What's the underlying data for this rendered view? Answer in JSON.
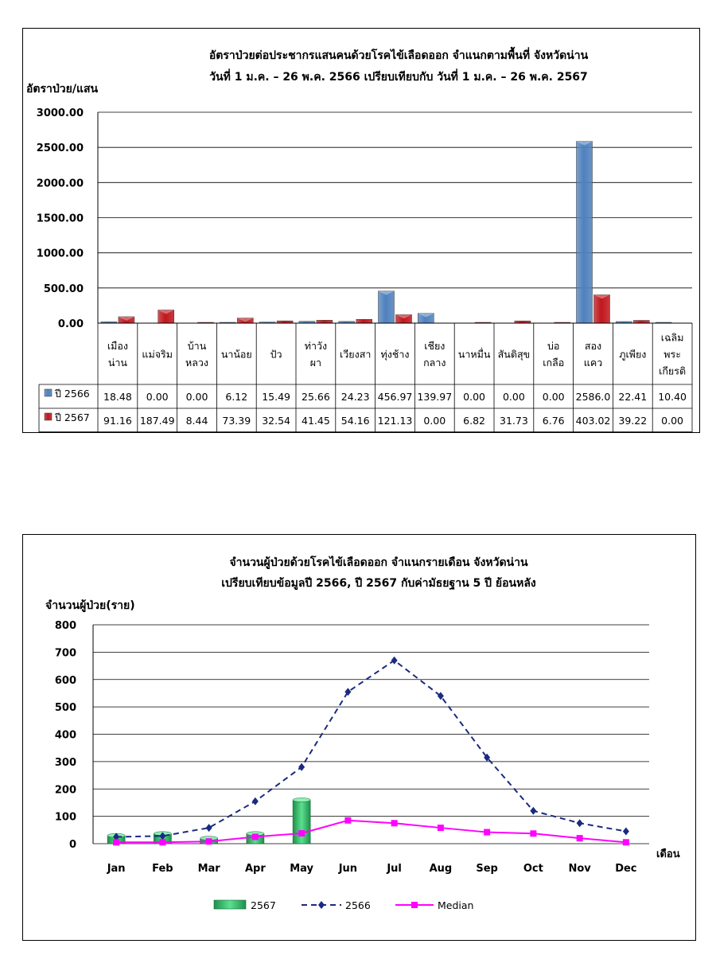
{
  "chart_data": [
    {
      "type": "bar",
      "title_lines": [
        "อัตราป่วยต่อประชากรแสนคนด้วยโรคไข้เลือดออก จำแนกตามพื้นที่ จังหวัดน่าน",
        "วันที่ 1 ม.ค. – 26 พ.ค. 2566 เปรียบเทียบกับ วันที่ 1 ม.ค. – 26 พ.ค. 2567"
      ],
      "ylabel": "อัตราป่วย/แสน",
      "ylim": [
        0,
        3000
      ],
      "yticks": [
        "0.00",
        "500.00",
        "1000.00",
        "1500.00",
        "2000.00",
        "2500.00",
        "3000.00"
      ],
      "grid": true,
      "categories": [
        [
          "เมือง",
          "น่าน"
        ],
        [
          "แม่จริม"
        ],
        [
          "บ้าน",
          "หลวง"
        ],
        [
          "นาน้อย"
        ],
        [
          "ปัว"
        ],
        [
          "ท่าวัง",
          "ผา"
        ],
        [
          "เวียงสา"
        ],
        [
          "ทุ่งช้าง"
        ],
        [
          "เชียง",
          "กลาง"
        ],
        [
          "นาหมื่น"
        ],
        [
          "สันติสุข"
        ],
        [
          "บ่อ",
          "เกลือ"
        ],
        [
          "สอง",
          "แคว"
        ],
        [
          "ภูเพียง"
        ],
        [
          "เฉลิม",
          "พระ",
          "เกียรติ"
        ]
      ],
      "series": [
        {
          "name": "ปี 2566",
          "color": "#4f81bd",
          "values": [
            18.48,
            0,
            0,
            6.12,
            15.49,
            25.66,
            24.23,
            456.97,
            139.97,
            0,
            0,
            0,
            2586.0,
            22.41,
            10.4
          ],
          "labels": [
            "18.48",
            "0.00",
            "0.00",
            "6.12",
            "15.49",
            "25.66",
            "24.23",
            "456.97",
            "139.97",
            "0.00",
            "0.00",
            "0.00",
            "2586.0",
            "22.41",
            "10.40"
          ]
        },
        {
          "name": "ปี 2567",
          "color": "#c0171d",
          "values": [
            91.16,
            187.49,
            8.44,
            73.39,
            32.54,
            41.45,
            54.16,
            121.13,
            0,
            6.82,
            31.73,
            6.76,
            403.02,
            39.22,
            0
          ],
          "labels": [
            "91.16",
            "187.49",
            "8.44",
            "73.39",
            "32.54",
            "41.45",
            "54.16",
            "121.13",
            "0.00",
            "6.82",
            "31.73",
            "6.76",
            "403.02",
            "39.22",
            "0.00"
          ]
        }
      ]
    },
    {
      "type": "line",
      "title_lines": [
        "จำนวนผู้ป่วยด้วยโรคไข้เลือดออก จำแนกรายเดือน จังหวัดน่าน",
        "เปรียบเทียบข้อมูลปี 2566, ปี 2567 กับค่ามัธยฐาน 5 ปี ย้อนหลัง"
      ],
      "ylabel": "จำนวนผู้ป่วย(ราย)",
      "xlabel": "เดือน",
      "ylim": [
        0,
        800
      ],
      "yticks": [
        "0",
        "100",
        "200",
        "300",
        "400",
        "500",
        "600",
        "700",
        "800"
      ],
      "grid": true,
      "categories": [
        "Jan",
        "Feb",
        "Mar",
        "Apr",
        "May",
        "Jun",
        "Jul",
        "Aug",
        "Sep",
        "Oct",
        "Nov",
        "Dec"
      ],
      "series": [
        {
          "name": "2567",
          "kind": "bar",
          "color": "#2fb865",
          "values": [
            30,
            37,
            20,
            37,
            160,
            null,
            null,
            null,
            null,
            null,
            null,
            null
          ]
        },
        {
          "name": "2566",
          "kind": "line-dashed",
          "color": "#1a2a80",
          "values": [
            25,
            28,
            58,
            155,
            280,
            555,
            670,
            540,
            315,
            120,
            75,
            45
          ]
        },
        {
          "name": "Median",
          "kind": "line",
          "color": "#ff00ff",
          "values": [
            5,
            5,
            8,
            25,
            38,
            85,
            75,
            58,
            42,
            37,
            20,
            5
          ]
        }
      ],
      "legend_position": "bottom"
    }
  ]
}
